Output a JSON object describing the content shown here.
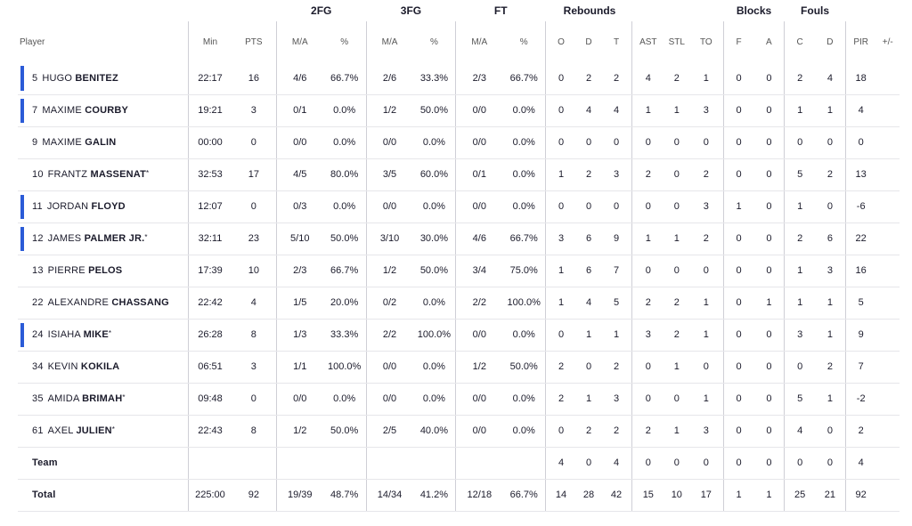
{
  "groups": {
    "fg2": "2FG",
    "fg3": "3FG",
    "ft": "FT",
    "reb": "Rebounds",
    "blk": "Blocks",
    "fouls": "Fouls"
  },
  "columns": {
    "player": "Player",
    "min": "Min",
    "pts": "PTS",
    "ma2": "M/A",
    "pct2": "%",
    "ma3": "M/A",
    "pct3": "%",
    "maft": "M/A",
    "pctft": "%",
    "o": "O",
    "d": "D",
    "t": "T",
    "ast": "AST",
    "stl": "STL",
    "to": "TO",
    "bf": "F",
    "ba": "A",
    "fc": "C",
    "fd": "D",
    "pir": "PIR",
    "pm": "+/-"
  },
  "players": [
    {
      "num": "5",
      "first": "HUGO",
      "last": "BENITEZ",
      "star": "",
      "starter": true,
      "stats": [
        "22:17",
        "16",
        "4/6",
        "66.7%",
        "2/6",
        "33.3%",
        "2/3",
        "66.7%",
        "0",
        "2",
        "2",
        "4",
        "2",
        "1",
        "0",
        "0",
        "2",
        "4",
        "18",
        ""
      ]
    },
    {
      "num": "7",
      "first": "MAXIME",
      "last": "COURBY",
      "star": "",
      "starter": true,
      "stats": [
        "19:21",
        "3",
        "0/1",
        "0.0%",
        "1/2",
        "50.0%",
        "0/0",
        "0.0%",
        "0",
        "4",
        "4",
        "1",
        "1",
        "3",
        "0",
        "0",
        "1",
        "1",
        "4",
        ""
      ]
    },
    {
      "num": "9",
      "first": "MAXIME",
      "last": "GALIN",
      "star": "",
      "starter": false,
      "stats": [
        "00:00",
        "0",
        "0/0",
        "0.0%",
        "0/0",
        "0.0%",
        "0/0",
        "0.0%",
        "0",
        "0",
        "0",
        "0",
        "0",
        "0",
        "0",
        "0",
        "0",
        "0",
        "0",
        ""
      ]
    },
    {
      "num": "10",
      "first": "FRANTZ",
      "last": "MASSENAT",
      "star": "*",
      "starter": false,
      "stats": [
        "32:53",
        "17",
        "4/5",
        "80.0%",
        "3/5",
        "60.0%",
        "0/1",
        "0.0%",
        "1",
        "2",
        "3",
        "2",
        "0",
        "2",
        "0",
        "0",
        "5",
        "2",
        "13",
        ""
      ]
    },
    {
      "num": "11",
      "first": "JORDAN",
      "last": "FLOYD",
      "star": "",
      "starter": true,
      "stats": [
        "12:07",
        "0",
        "0/3",
        "0.0%",
        "0/0",
        "0.0%",
        "0/0",
        "0.0%",
        "0",
        "0",
        "0",
        "0",
        "0",
        "3",
        "1",
        "0",
        "1",
        "0",
        "-6",
        ""
      ]
    },
    {
      "num": "12",
      "first": "JAMES",
      "last": "PALMER JR.",
      "star": "*",
      "starter": true,
      "stats": [
        "32:11",
        "23",
        "5/10",
        "50.0%",
        "3/10",
        "30.0%",
        "4/6",
        "66.7%",
        "3",
        "6",
        "9",
        "1",
        "1",
        "2",
        "0",
        "0",
        "2",
        "6",
        "22",
        ""
      ]
    },
    {
      "num": "13",
      "first": "PIERRE",
      "last": "PELOS",
      "star": "",
      "starter": false,
      "stats": [
        "17:39",
        "10",
        "2/3",
        "66.7%",
        "1/2",
        "50.0%",
        "3/4",
        "75.0%",
        "1",
        "6",
        "7",
        "0",
        "0",
        "0",
        "0",
        "0",
        "1",
        "3",
        "16",
        ""
      ]
    },
    {
      "num": "22",
      "first": "ALEXANDRE",
      "last": "CHASSANG",
      "star": "",
      "starter": false,
      "stats": [
        "22:42",
        "4",
        "1/5",
        "20.0%",
        "0/2",
        "0.0%",
        "2/2",
        "100.0%",
        "1",
        "4",
        "5",
        "2",
        "2",
        "1",
        "0",
        "1",
        "1",
        "1",
        "5",
        ""
      ]
    },
    {
      "num": "24",
      "first": "ISIAHA",
      "last": "MIKE",
      "star": "*",
      "starter": true,
      "stats": [
        "26:28",
        "8",
        "1/3",
        "33.3%",
        "2/2",
        "100.0%",
        "0/0",
        "0.0%",
        "0",
        "1",
        "1",
        "3",
        "2",
        "1",
        "0",
        "0",
        "3",
        "1",
        "9",
        ""
      ]
    },
    {
      "num": "34",
      "first": "KEVIN",
      "last": "KOKILA",
      "star": "",
      "starter": false,
      "stats": [
        "06:51",
        "3",
        "1/1",
        "100.0%",
        "0/0",
        "0.0%",
        "1/2",
        "50.0%",
        "2",
        "0",
        "2",
        "0",
        "1",
        "0",
        "0",
        "0",
        "0",
        "2",
        "7",
        ""
      ]
    },
    {
      "num": "35",
      "first": "AMIDA",
      "last": "BRIMAH",
      "star": "*",
      "starter": false,
      "stats": [
        "09:48",
        "0",
        "0/0",
        "0.0%",
        "0/0",
        "0.0%",
        "0/0",
        "0.0%",
        "2",
        "1",
        "3",
        "0",
        "0",
        "1",
        "0",
        "0",
        "5",
        "1",
        "-2",
        ""
      ]
    },
    {
      "num": "61",
      "first": "AXEL",
      "last": "JULIEN",
      "star": "*",
      "starter": false,
      "stats": [
        "22:43",
        "8",
        "1/2",
        "50.0%",
        "2/5",
        "40.0%",
        "0/0",
        "0.0%",
        "0",
        "2",
        "2",
        "2",
        "1",
        "3",
        "0",
        "0",
        "4",
        "0",
        "2",
        ""
      ]
    }
  ],
  "team": {
    "label": "Team",
    "stats": [
      "",
      "",
      "",
      "",
      "",
      "",
      "",
      "",
      "4",
      "0",
      "4",
      "0",
      "0",
      "0",
      "0",
      "0",
      "0",
      "0",
      "4",
      ""
    ]
  },
  "total": {
    "label": "Total",
    "stats": [
      "225:00",
      "92",
      "19/39",
      "48.7%",
      "14/34",
      "41.2%",
      "12/18",
      "66.7%",
      "14",
      "28",
      "42",
      "15",
      "10",
      "17",
      "1",
      "1",
      "25",
      "21",
      "92",
      ""
    ]
  },
  "colors": {
    "starter_bar": "#2b5bd7"
  }
}
